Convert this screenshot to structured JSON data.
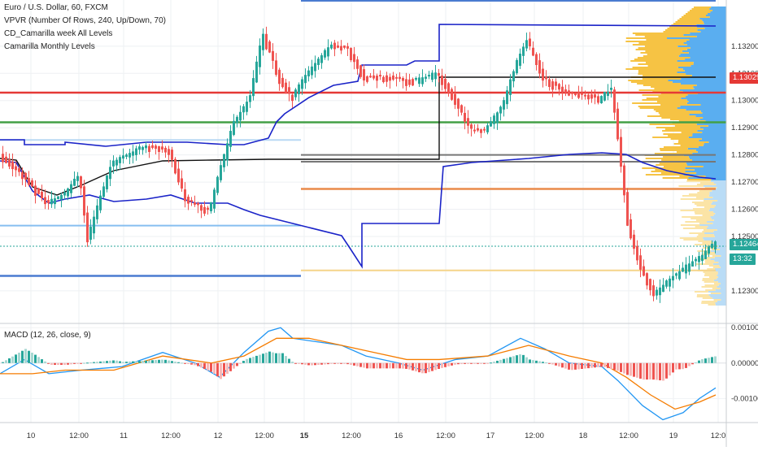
{
  "legend": {
    "symbol": "Euro / U.S. Dollar, 60, FXCM",
    "indicator_vpvr": "VPVR (Number Of Rows, 240, Up/Down, 70)",
    "indicator_camarilla_week": "CD_Camarilla week All Levels",
    "indicator_camarilla_month": "Camarilla Monthly Levels",
    "macd_label": "MACD (12, 26, close, 9)"
  },
  "price_tags": {
    "red_level": "1.13029",
    "last_price": "1.12464",
    "countdown": "13:32"
  },
  "colors": {
    "up_candle": "#26a69a",
    "down_candle": "#ef5350",
    "red_line": "#e53935",
    "green_line": "#43a047",
    "blue_line": "#1a23c8",
    "vpvr_blue": "#5aaef0",
    "vpvr_yellow": "#f6c344",
    "last_price": "#26a69a",
    "macd_blue": "#2196f3",
    "macd_orange": "#f57c00"
  },
  "chart_data": [
    {
      "type": "candlestick",
      "title": "Euro / U.S. Dollar, 60, FXCM",
      "y_tick_labels": [
        "1.13200",
        "1.13100",
        "1.13000",
        "1.12900",
        "1.12800",
        "1.12700",
        "1.12600",
        "1.12500",
        "1.12300"
      ],
      "x_tick_labels": [
        "10",
        "12:00",
        "11",
        "12:00",
        "12",
        "12:00",
        "15",
        "12:00",
        "16",
        "12:00",
        "17",
        "12:00",
        "18",
        "12:00",
        "19",
        "12:0"
      ],
      "ylim": [
        1.1218,
        1.1337
      ],
      "last_price": 1.12464,
      "horizontal_levels": [
        {
          "price": 1.13029,
          "color": "red"
        },
        {
          "price": 1.1292,
          "color": "green"
        },
        {
          "price": 1.128,
          "color": "gray"
        },
        {
          "price": 1.12775,
          "color": "gray"
        },
        {
          "price": 1.12675,
          "color": "orange"
        },
        {
          "price": 1.12855,
          "color": "light-blue"
        },
        {
          "price": 1.1254,
          "color": "light-blue"
        },
        {
          "price": 1.12375,
          "color": "light-yellow"
        },
        {
          "price": 1.12355,
          "color": "steel-blue"
        }
      ]
    },
    {
      "type": "line",
      "title": "MACD (12, 26, close, 9)",
      "y_tick_labels": [
        "0.00100",
        "0.00000",
        "-0.00100"
      ],
      "ylim": [
        -0.00168,
        0.00112
      ]
    }
  ]
}
